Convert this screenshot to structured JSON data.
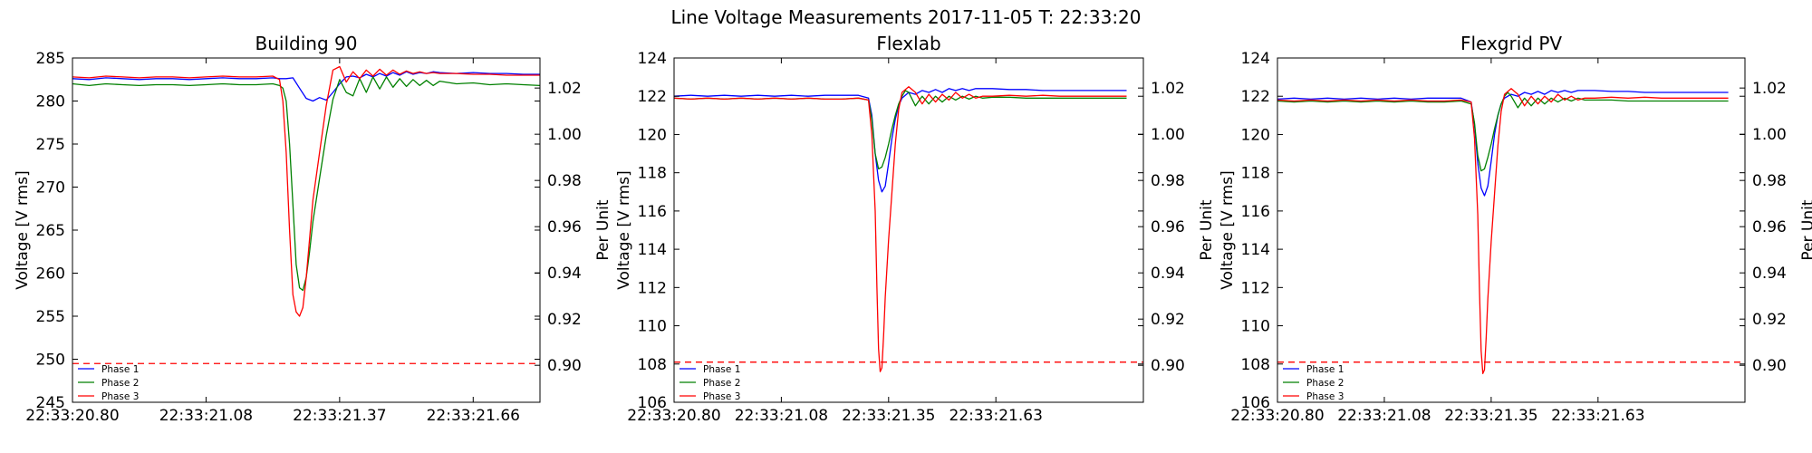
{
  "figure": {
    "suptitle": "Line Voltage Measurements 2017-11-05 T: 22:33:20"
  },
  "chart_data": [
    {
      "type": "line",
      "title": "Building 90",
      "ylabel": "Voltage [V rms]",
      "y2label": "Per Unit",
      "xlim": [
        0,
        1.4
      ],
      "ylim": [
        245,
        285
      ],
      "y2lim": [
        0.884,
        1.033
      ],
      "xtick_values": [
        0,
        0.4,
        0.8,
        1.2
      ],
      "xtick_labels": [
        "22:33:20.80",
        "22:33:21.08",
        "22:33:21.37",
        "22:33:21.66"
      ],
      "yticks": [
        245,
        250,
        255,
        260,
        265,
        270,
        275,
        280,
        285
      ],
      "y2ticks": [
        "0.90",
        "0.92",
        "0.94",
        "0.96",
        "0.98",
        "1.00",
        "1.02"
      ],
      "reference_line": {
        "y": 249.5,
        "color": "#ff0000",
        "style": "dashed"
      },
      "legend": {
        "location": "lower-left"
      },
      "series": [
        {
          "name": "Phase 1",
          "color": "#0000ff",
          "x": [
            0,
            0.05,
            0.1,
            0.15,
            0.2,
            0.25,
            0.3,
            0.35,
            0.4,
            0.45,
            0.5,
            0.55,
            0.6,
            0.62,
            0.64,
            0.66,
            0.68,
            0.7,
            0.72,
            0.74,
            0.76,
            0.78,
            0.8,
            0.82,
            0.84,
            0.86,
            0.88,
            0.9,
            0.92,
            0.94,
            0.96,
            0.98,
            1.0,
            1.02,
            1.04,
            1.06,
            1.08,
            1.1,
            1.15,
            1.2,
            1.25,
            1.3,
            1.35,
            1.4
          ],
          "y": [
            282.6,
            282.5,
            282.7,
            282.6,
            282.5,
            282.6,
            282.6,
            282.5,
            282.6,
            282.7,
            282.6,
            282.6,
            282.7,
            282.6,
            282.6,
            282.7,
            281.5,
            280.3,
            280.0,
            280.4,
            280.1,
            281.0,
            282.0,
            282.8,
            282.9,
            282.7,
            283.1,
            282.8,
            283.2,
            282.9,
            283.3,
            283.0,
            283.4,
            283.1,
            283.3,
            283.2,
            283.4,
            283.3,
            283.2,
            283.3,
            283.2,
            283.2,
            283.1,
            283.1
          ]
        },
        {
          "name": "Phase 2",
          "color": "#008000",
          "x": [
            0,
            0.05,
            0.1,
            0.15,
            0.2,
            0.25,
            0.3,
            0.35,
            0.4,
            0.45,
            0.5,
            0.55,
            0.6,
            0.62,
            0.63,
            0.64,
            0.65,
            0.66,
            0.67,
            0.68,
            0.69,
            0.7,
            0.71,
            0.72,
            0.74,
            0.76,
            0.78,
            0.8,
            0.82,
            0.84,
            0.86,
            0.88,
            0.9,
            0.92,
            0.94,
            0.96,
            0.98,
            1.0,
            1.02,
            1.04,
            1.06,
            1.08,
            1.1,
            1.15,
            1.2,
            1.25,
            1.3,
            1.35,
            1.4
          ],
          "y": [
            282.0,
            281.8,
            282.0,
            281.9,
            281.8,
            281.9,
            281.9,
            281.8,
            281.9,
            282.0,
            281.9,
            281.9,
            282.0,
            281.8,
            281.5,
            280.0,
            275.0,
            268.0,
            261.0,
            258.3,
            258.0,
            259.5,
            262.5,
            266.0,
            271.0,
            276.0,
            280.2,
            282.5,
            281.0,
            280.6,
            282.6,
            281.0,
            282.8,
            281.4,
            282.8,
            281.6,
            282.6,
            281.7,
            282.5,
            281.8,
            282.4,
            281.8,
            282.3,
            282.0,
            282.1,
            281.9,
            282.0,
            281.9,
            281.8
          ]
        },
        {
          "name": "Phase 3",
          "color": "#ff0000",
          "x": [
            0,
            0.05,
            0.1,
            0.15,
            0.2,
            0.25,
            0.3,
            0.35,
            0.4,
            0.45,
            0.5,
            0.55,
            0.6,
            0.62,
            0.63,
            0.64,
            0.65,
            0.66,
            0.67,
            0.68,
            0.69,
            0.7,
            0.71,
            0.72,
            0.74,
            0.76,
            0.78,
            0.8,
            0.82,
            0.84,
            0.86,
            0.88,
            0.9,
            0.92,
            0.94,
            0.96,
            0.98,
            1.0,
            1.02,
            1.04,
            1.06,
            1.08,
            1.1,
            1.15,
            1.2,
            1.25,
            1.3,
            1.35,
            1.4
          ],
          "y": [
            282.8,
            282.7,
            282.9,
            282.8,
            282.7,
            282.8,
            282.8,
            282.7,
            282.8,
            282.9,
            282.8,
            282.8,
            282.9,
            282.5,
            280.0,
            274.0,
            265.0,
            257.5,
            255.5,
            255.0,
            256.0,
            259.5,
            264.0,
            268.5,
            274.0,
            279.5,
            283.6,
            284.0,
            282.2,
            283.4,
            282.6,
            283.6,
            282.9,
            283.7,
            283.0,
            283.6,
            283.1,
            283.5,
            283.2,
            283.4,
            283.2,
            283.3,
            283.2,
            283.2,
            283.1,
            283.1,
            283.0,
            283.0,
            283.0
          ]
        }
      ]
    },
    {
      "type": "line",
      "title": "Flexlab",
      "ylabel": "Voltage [V rms]",
      "y2label": "Per Unit",
      "xlim": [
        0,
        1.4
      ],
      "ylim": [
        106,
        124
      ],
      "y2lim": [
        0.884,
        1.033
      ],
      "xtick_values": [
        0,
        0.32,
        0.64,
        0.96
      ],
      "xtick_labels": [
        "22:33:20.80",
        "22:33:21.08",
        "22:33:21.35",
        "22:33:21.63"
      ],
      "yticks": [
        106,
        108,
        110,
        112,
        114,
        116,
        118,
        120,
        122,
        124
      ],
      "y2ticks": [
        "0.90",
        "0.92",
        "0.94",
        "0.96",
        "0.98",
        "1.00",
        "1.02"
      ],
      "reference_line": {
        "y": 108.1,
        "color": "#ff0000",
        "style": "dashed"
      },
      "legend": {
        "location": "lower-left"
      },
      "series": [
        {
          "name": "Phase 1",
          "color": "#0000ff",
          "x": [
            0,
            0.05,
            0.1,
            0.15,
            0.2,
            0.25,
            0.3,
            0.35,
            0.4,
            0.45,
            0.5,
            0.55,
            0.58,
            0.59,
            0.6,
            0.61,
            0.62,
            0.63,
            0.64,
            0.65,
            0.66,
            0.67,
            0.68,
            0.7,
            0.72,
            0.74,
            0.76,
            0.78,
            0.8,
            0.82,
            0.84,
            0.86,
            0.88,
            0.9,
            0.92,
            0.95,
            1.0,
            1.05,
            1.1,
            1.15,
            1.2,
            1.25,
            1.3,
            1.35
          ],
          "y": [
            122.0,
            122.05,
            122.0,
            122.05,
            122.0,
            122.05,
            122.0,
            122.05,
            122.0,
            122.05,
            122.05,
            122.05,
            121.9,
            121.0,
            119.0,
            117.6,
            117.0,
            117.3,
            118.5,
            119.8,
            120.8,
            121.5,
            121.9,
            122.2,
            122.1,
            122.3,
            122.2,
            122.35,
            122.2,
            122.4,
            122.3,
            122.4,
            122.3,
            122.4,
            122.4,
            122.4,
            122.35,
            122.35,
            122.3,
            122.3,
            122.3,
            122.3,
            122.3,
            122.3
          ]
        },
        {
          "name": "Phase 2",
          "color": "#008000",
          "x": [
            0,
            0.05,
            0.1,
            0.15,
            0.2,
            0.25,
            0.3,
            0.35,
            0.4,
            0.45,
            0.5,
            0.55,
            0.58,
            0.59,
            0.6,
            0.61,
            0.62,
            0.63,
            0.64,
            0.65,
            0.66,
            0.67,
            0.68,
            0.69,
            0.7,
            0.72,
            0.74,
            0.76,
            0.78,
            0.8,
            0.82,
            0.84,
            0.86,
            0.88,
            0.9,
            0.92,
            0.95,
            1.0,
            1.05,
            1.1,
            1.15,
            1.2,
            1.25,
            1.3,
            1.35
          ],
          "y": [
            121.9,
            121.85,
            121.9,
            121.85,
            121.9,
            121.85,
            121.9,
            121.85,
            121.9,
            121.85,
            121.85,
            121.9,
            121.8,
            120.8,
            119.0,
            118.2,
            118.3,
            118.8,
            119.5,
            120.3,
            121.0,
            121.6,
            122.0,
            122.3,
            122.2,
            121.5,
            122.0,
            121.6,
            122.0,
            121.7,
            122.0,
            121.8,
            122.0,
            121.85,
            122.0,
            121.9,
            121.95,
            121.95,
            121.9,
            121.9,
            121.9,
            121.9,
            121.9,
            121.9,
            121.9
          ]
        },
        {
          "name": "Phase 3",
          "color": "#ff0000",
          "x": [
            0,
            0.05,
            0.1,
            0.15,
            0.2,
            0.25,
            0.3,
            0.35,
            0.4,
            0.45,
            0.5,
            0.55,
            0.58,
            0.59,
            0.6,
            0.605,
            0.61,
            0.615,
            0.62,
            0.625,
            0.63,
            0.64,
            0.65,
            0.66,
            0.67,
            0.68,
            0.7,
            0.72,
            0.74,
            0.76,
            0.78,
            0.8,
            0.82,
            0.84,
            0.86,
            0.88,
            0.9,
            0.92,
            0.95,
            1.0,
            1.05,
            1.1,
            1.15,
            1.2,
            1.25,
            1.3,
            1.35
          ],
          "y": [
            121.9,
            121.85,
            121.9,
            121.85,
            121.9,
            121.85,
            121.9,
            121.85,
            121.9,
            121.85,
            121.85,
            121.9,
            121.8,
            120.0,
            116.0,
            112.0,
            108.8,
            107.6,
            107.8,
            109.5,
            111.5,
            114.5,
            117.0,
            119.5,
            121.3,
            122.2,
            122.5,
            122.2,
            121.6,
            122.1,
            121.7,
            122.1,
            121.8,
            122.2,
            121.9,
            122.1,
            121.9,
            122.0,
            122.0,
            122.05,
            122.0,
            122.05,
            122.0,
            122.0,
            122.0,
            122.0,
            122.0
          ]
        }
      ]
    },
    {
      "type": "line",
      "title": "Flexgrid PV",
      "ylabel": "Voltage [V rms]",
      "y2label": "Per Unit",
      "xlim": [
        0,
        1.4
      ],
      "ylim": [
        106,
        124
      ],
      "y2lim": [
        0.884,
        1.033
      ],
      "xtick_values": [
        0,
        0.32,
        0.64,
        0.96
      ],
      "xtick_labels": [
        "22:33:20.80",
        "22:33:21.08",
        "22:33:21.35",
        "22:33:21.63"
      ],
      "yticks": [
        106,
        108,
        110,
        112,
        114,
        116,
        118,
        120,
        122,
        124
      ],
      "y2ticks": [
        "0.90",
        "0.92",
        "0.94",
        "0.96",
        "0.98",
        "1.00",
        "1.02"
      ],
      "reference_line": {
        "y": 108.1,
        "color": "#ff0000",
        "style": "dashed"
      },
      "legend": {
        "location": "lower-left"
      },
      "series": [
        {
          "name": "Phase 1",
          "color": "#0000ff",
          "x": [
            0,
            0.05,
            0.1,
            0.15,
            0.2,
            0.25,
            0.3,
            0.35,
            0.4,
            0.45,
            0.5,
            0.55,
            0.58,
            0.59,
            0.6,
            0.61,
            0.62,
            0.63,
            0.64,
            0.65,
            0.66,
            0.67,
            0.68,
            0.7,
            0.72,
            0.74,
            0.76,
            0.78,
            0.8,
            0.82,
            0.84,
            0.86,
            0.88,
            0.9,
            0.92,
            0.95,
            1.0,
            1.05,
            1.1,
            1.15,
            1.2,
            1.25,
            1.3,
            1.35
          ],
          "y": [
            121.85,
            121.9,
            121.85,
            121.9,
            121.85,
            121.9,
            121.85,
            121.9,
            121.85,
            121.9,
            121.9,
            121.9,
            121.7,
            120.5,
            118.5,
            117.2,
            116.8,
            117.3,
            118.6,
            120.0,
            121.0,
            121.6,
            121.9,
            122.1,
            122.0,
            122.2,
            122.1,
            122.25,
            122.1,
            122.3,
            122.2,
            122.3,
            122.2,
            122.3,
            122.3,
            122.3,
            122.25,
            122.25,
            122.2,
            122.2,
            122.2,
            122.2,
            122.2,
            122.2
          ]
        },
        {
          "name": "Phase 2",
          "color": "#008000",
          "x": [
            0,
            0.05,
            0.1,
            0.15,
            0.2,
            0.25,
            0.3,
            0.35,
            0.4,
            0.45,
            0.5,
            0.55,
            0.58,
            0.59,
            0.6,
            0.61,
            0.62,
            0.63,
            0.64,
            0.65,
            0.66,
            0.67,
            0.68,
            0.69,
            0.7,
            0.72,
            0.74,
            0.76,
            0.78,
            0.8,
            0.82,
            0.84,
            0.86,
            0.88,
            0.9,
            0.92,
            0.95,
            1.0,
            1.05,
            1.1,
            1.15,
            1.2,
            1.25,
            1.3,
            1.35
          ],
          "y": [
            121.75,
            121.7,
            121.75,
            121.7,
            121.75,
            121.7,
            121.75,
            121.7,
            121.75,
            121.7,
            121.7,
            121.75,
            121.6,
            120.6,
            118.9,
            118.1,
            118.2,
            118.8,
            119.5,
            120.3,
            121.0,
            121.6,
            122.0,
            122.2,
            122.0,
            121.4,
            121.9,
            121.5,
            121.9,
            121.6,
            121.9,
            121.7,
            121.9,
            121.75,
            121.9,
            121.8,
            121.8,
            121.8,
            121.75,
            121.75,
            121.75,
            121.75,
            121.75,
            121.75,
            121.75
          ]
        },
        {
          "name": "Phase 3",
          "color": "#ff0000",
          "x": [
            0,
            0.05,
            0.1,
            0.15,
            0.2,
            0.25,
            0.3,
            0.35,
            0.4,
            0.45,
            0.5,
            0.55,
            0.58,
            0.59,
            0.6,
            0.605,
            0.61,
            0.615,
            0.62,
            0.625,
            0.63,
            0.64,
            0.65,
            0.66,
            0.67,
            0.68,
            0.7,
            0.72,
            0.74,
            0.76,
            0.78,
            0.8,
            0.82,
            0.84,
            0.86,
            0.88,
            0.9,
            0.92,
            0.95,
            1.0,
            1.05,
            1.1,
            1.15,
            1.2,
            1.25,
            1.3,
            1.35
          ],
          "y": [
            121.8,
            121.75,
            121.8,
            121.75,
            121.8,
            121.75,
            121.8,
            121.75,
            121.8,
            121.75,
            121.75,
            121.8,
            121.7,
            119.8,
            115.8,
            111.8,
            108.7,
            107.5,
            107.7,
            109.4,
            111.4,
            114.4,
            116.9,
            119.4,
            121.2,
            122.1,
            122.4,
            122.1,
            121.5,
            122.0,
            121.6,
            122.0,
            121.7,
            122.1,
            121.8,
            122.0,
            121.8,
            121.9,
            121.9,
            121.95,
            121.9,
            121.95,
            121.9,
            121.9,
            121.9,
            121.9,
            121.9
          ]
        }
      ]
    }
  ]
}
